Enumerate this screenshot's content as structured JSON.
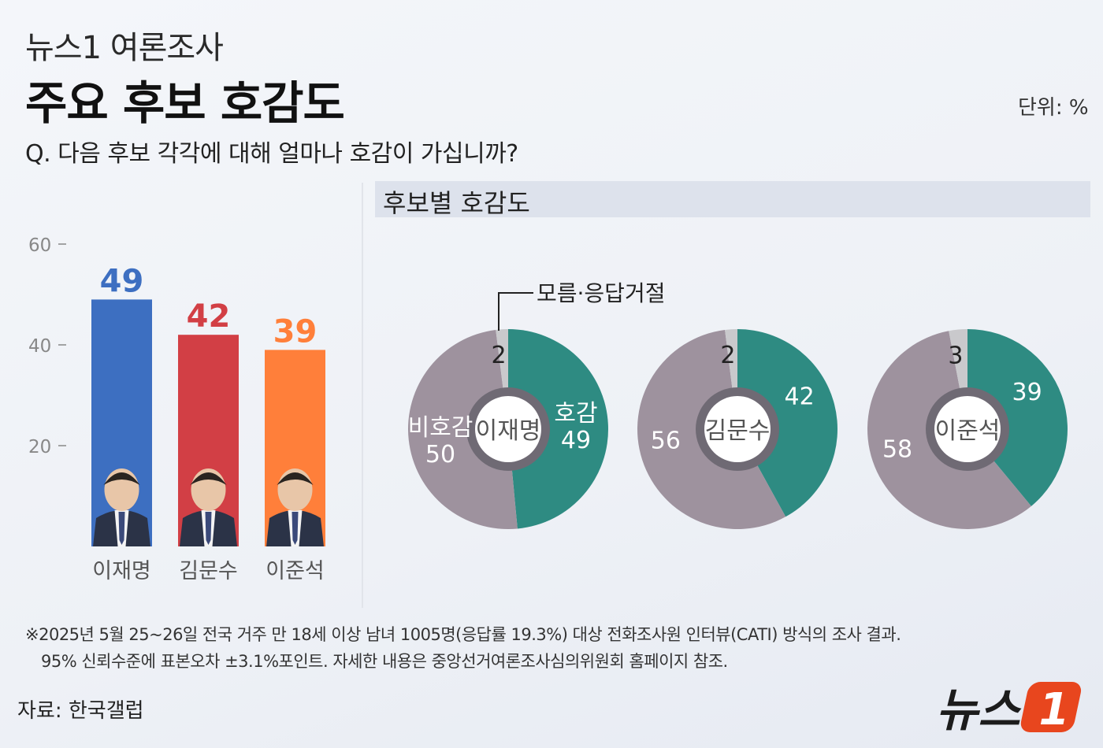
{
  "header": {
    "source": "뉴스1 여론조사",
    "title": "주요 후보 호감도",
    "question": "Q. 다음 후보 각각에 대해 얼마나 호감이 가십니까?",
    "unit": "단위: %"
  },
  "section_title": "후보별 호감도",
  "chart_data": [
    {
      "type": "bar",
      "categories": [
        "이재명",
        "김문수",
        "이준석"
      ],
      "values": [
        49,
        42,
        39
      ],
      "colors": [
        "#3d6fc1",
        "#d23f45",
        "#ff7f3a"
      ],
      "yticks": [
        20,
        40,
        60
      ],
      "ylim": [
        0,
        60
      ],
      "icons": [
        "portrait-icon",
        "portrait-icon",
        "portrait-icon"
      ]
    },
    {
      "type": "pie",
      "legend": "모름·응답거절",
      "series_labels": [
        "호감",
        "비호감",
        "모름·응답거절"
      ],
      "colors": {
        "favorable": "#2e8b82",
        "unfavorable": "#9e929e",
        "unknown": "#c9c9cc"
      },
      "pies": [
        {
          "center_label": "이재명",
          "favorable": 49,
          "unfavorable": 50,
          "unknown": 2
        },
        {
          "center_label": "김문수",
          "favorable": 42,
          "unfavorable": 56,
          "unknown": 2
        },
        {
          "center_label": "이준석",
          "favorable": 39,
          "unfavorable": 58,
          "unknown": 3
        }
      ]
    }
  ],
  "footnote": {
    "line1": "※2025년 5월 25~26일 전국 거주 만 18세 이상 남녀 1005명(응답률 19.3%) 대상 전화조사원 인터뷰(CATI) 방식의 조사 결과.",
    "line2": "95% 신뢰수준에 표본오차 ±3.1%포인트. 자세한 내용은 중앙선거여론조사심의위원회 홈페이지 참조."
  },
  "source": "자료: 한국갤럽",
  "logo": {
    "text": "뉴스",
    "mark": "1"
  }
}
